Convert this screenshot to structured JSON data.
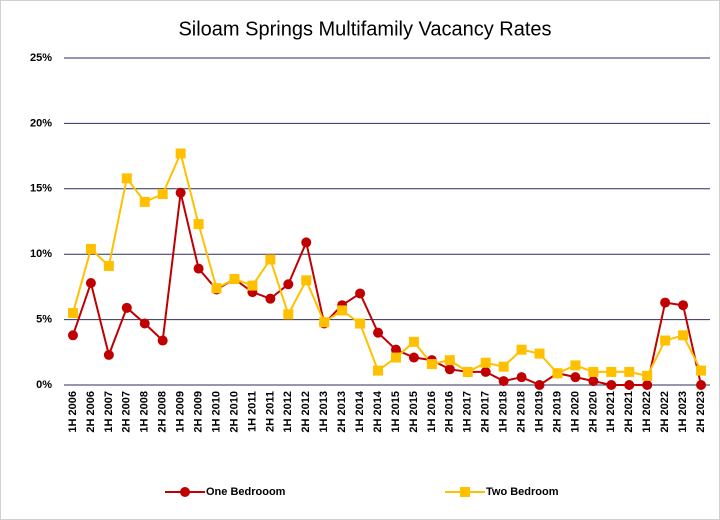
{
  "chart_data": {
    "type": "line",
    "title": "Siloam Springs Multifamily Vacancy Rates",
    "categories": [
      "1H 2006",
      "2H 2006",
      "1H 2007",
      "2H 2007",
      "1H 2008",
      "2H 2008",
      "1H 2009",
      "2H 2009",
      "1H 2010",
      "2H 2010",
      "1H 2011",
      "2H 2011",
      "1H 2012",
      "2H 2012",
      "1H 2013",
      "2H 2013",
      "1H 2014",
      "2H 2014",
      "1H 2015",
      "2H 2015",
      "1H 2016",
      "2H 2016",
      "1H 2017",
      "2H 2017",
      "1H 2018",
      "2H 2018",
      "1H 2019",
      "2H 2019",
      "1H 2020",
      "2H 2020",
      "1H 2021",
      "2H 2021",
      "1H 2022",
      "2H 2022",
      "1H 2023",
      "2H 2023"
    ],
    "series": [
      {
        "name": "One Bedrooom",
        "color": "#c00000",
        "marker": "circle",
        "values": [
          3.8,
          7.8,
          2.3,
          5.9,
          4.7,
          3.4,
          14.7,
          8.9,
          7.3,
          8.1,
          7.1,
          6.6,
          7.7,
          10.9,
          4.7,
          6.1,
          7.0,
          4.0,
          2.7,
          2.1,
          1.9,
          1.2,
          1.0,
          1.0,
          0.3,
          0.6,
          0,
          0.9,
          0.6,
          0.3,
          0,
          0,
          0,
          6.3,
          6.1,
          0
        ]
      },
      {
        "name": "Two Bedroom",
        "color": "#ffc000",
        "marker": "square",
        "values": [
          5.5,
          10.4,
          9.1,
          15.8,
          14.0,
          14.6,
          17.7,
          12.3,
          7.4,
          8.1,
          7.6,
          9.6,
          5.4,
          8.0,
          4.8,
          5.7,
          4.7,
          1.1,
          2.1,
          3.3,
          1.6,
          1.9,
          1.0,
          1.7,
          1.4,
          2.7,
          2.4,
          0.9,
          1.5,
          1.0,
          1.0,
          1.0,
          0.7,
          3.4,
          3.8,
          1.1
        ]
      }
    ],
    "ylim": [
      0,
      25
    ],
    "yticks": [
      {
        "value": 0,
        "label": "0%"
      },
      {
        "value": 5,
        "label": "5%"
      },
      {
        "value": 10,
        "label": "10%"
      },
      {
        "value": 15,
        "label": "15%"
      },
      {
        "value": 20,
        "label": "20%"
      },
      {
        "value": 25,
        "label": "25%"
      }
    ],
    "grid": true,
    "legend": "bottom"
  }
}
